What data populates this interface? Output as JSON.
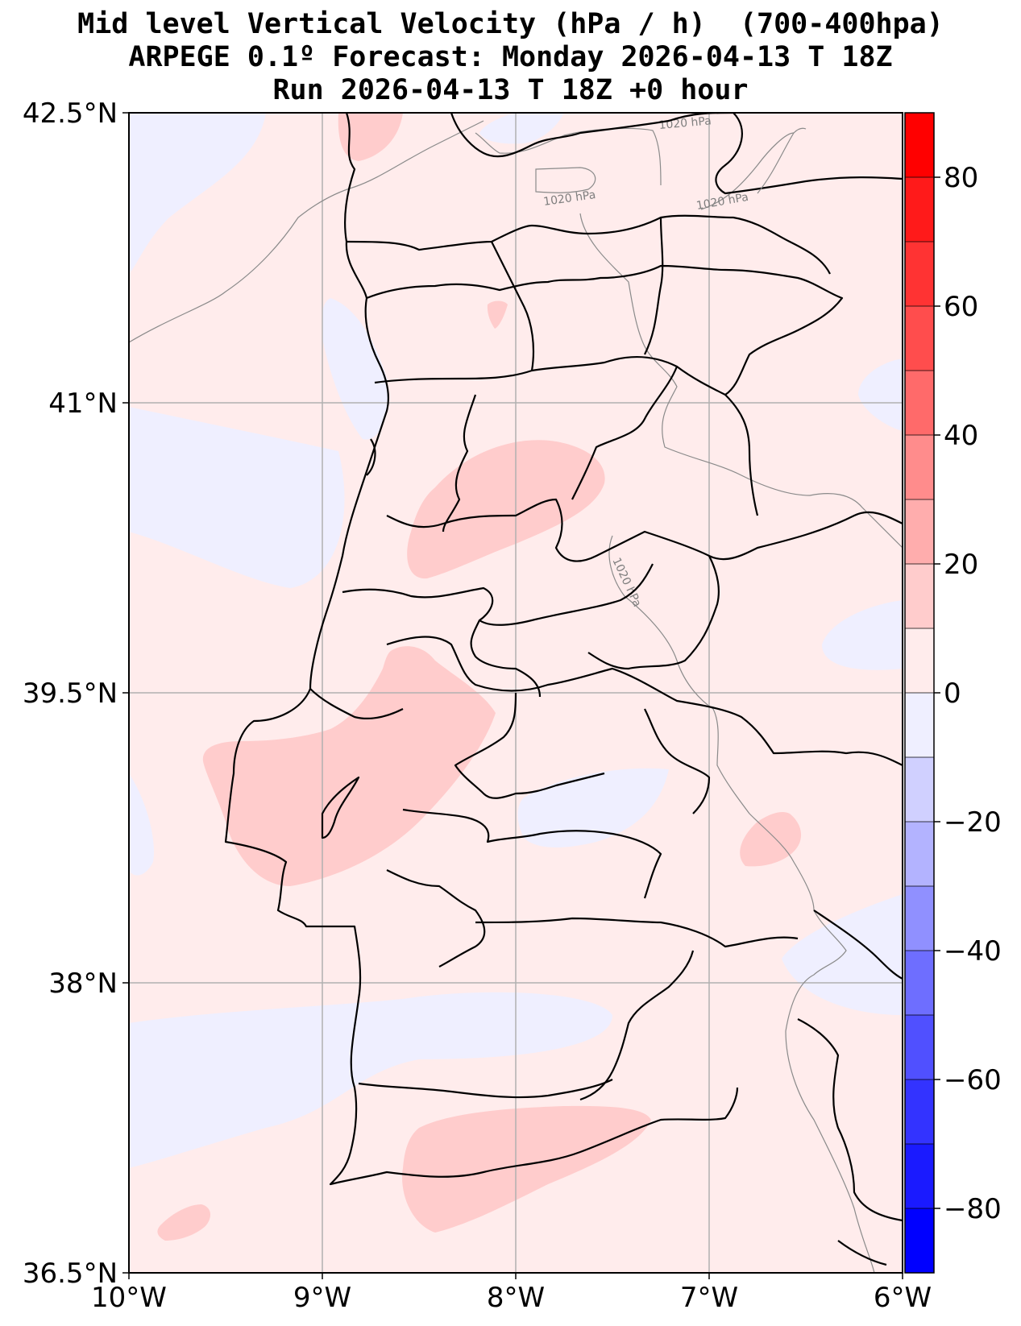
{
  "title": {
    "line1": "Mid level Vertical Velocity (hPa / h)  (700-400hpa)",
    "line2": "ARPEGE 0.1º Forecast: Monday 2026-04-13 T 18Z",
    "line3": "Run 2026-04-13 T 18Z +0 hour"
  },
  "map": {
    "lon_range": [
      -10,
      -6
    ],
    "lat_range": [
      36.5,
      42.5
    ],
    "lat_ticks": [
      {
        "value": 42.5,
        "label": "42.5°N"
      },
      {
        "value": 41,
        "label": "41°N"
      },
      {
        "value": 39.5,
        "label": "39.5°N"
      },
      {
        "value": 38,
        "label": "38°N"
      },
      {
        "value": 36.5,
        "label": "36.5°N"
      }
    ],
    "lon_ticks": [
      {
        "value": -10,
        "label": "10°W"
      },
      {
        "value": -9,
        "label": "9°W"
      },
      {
        "value": -8,
        "label": "8°W"
      },
      {
        "value": -7,
        "label": "7°W"
      },
      {
        "value": -6,
        "label": "6°W"
      }
    ],
    "grid": true,
    "background_level_color": "#ffecec",
    "isobar_labels": [
      "1020 hPa",
      "1020 hPa",
      "1020 hPa",
      "1020 hPa"
    ]
  },
  "colorbar": {
    "range": [
      -90,
      90
    ],
    "levels": [
      {
        "from": -90,
        "to": -80,
        "color": "#0000ff"
      },
      {
        "from": -80,
        "to": -70,
        "color": "#1a1aff"
      },
      {
        "from": -70,
        "to": -60,
        "color": "#3333ff"
      },
      {
        "from": -60,
        "to": -50,
        "color": "#5050ff"
      },
      {
        "from": -50,
        "to": -40,
        "color": "#6e6eff"
      },
      {
        "from": -40,
        "to": -30,
        "color": "#9090ff"
      },
      {
        "from": -30,
        "to": -20,
        "color": "#b3b3ff"
      },
      {
        "from": -20,
        "to": -10,
        "color": "#d0d0ff"
      },
      {
        "from": -10,
        "to": 0,
        "color": "#efefff"
      },
      {
        "from": 0,
        "to": 10,
        "color": "#ffecec"
      },
      {
        "from": 10,
        "to": 20,
        "color": "#ffcccc"
      },
      {
        "from": 20,
        "to": 30,
        "color": "#ffadad"
      },
      {
        "from": 30,
        "to": 40,
        "color": "#ff8c8c"
      },
      {
        "from": 40,
        "to": 50,
        "color": "#ff6a6a"
      },
      {
        "from": 50,
        "to": 60,
        "color": "#ff4d4d"
      },
      {
        "from": 60,
        "to": 70,
        "color": "#ff3333"
      },
      {
        "from": 70,
        "to": 80,
        "color": "#ff1a1a"
      },
      {
        "from": 80,
        "to": 90,
        "color": "#ff0000"
      }
    ],
    "ticks": [
      {
        "value": 80,
        "label": "80"
      },
      {
        "value": 60,
        "label": "60"
      },
      {
        "value": 40,
        "label": "40"
      },
      {
        "value": 20,
        "label": "20"
      },
      {
        "value": 0,
        "label": "0"
      },
      {
        "value": -20,
        "label": "−20"
      },
      {
        "value": -40,
        "label": "−40"
      },
      {
        "value": -60,
        "label": "−60"
      },
      {
        "value": -80,
        "label": "−80"
      }
    ]
  }
}
